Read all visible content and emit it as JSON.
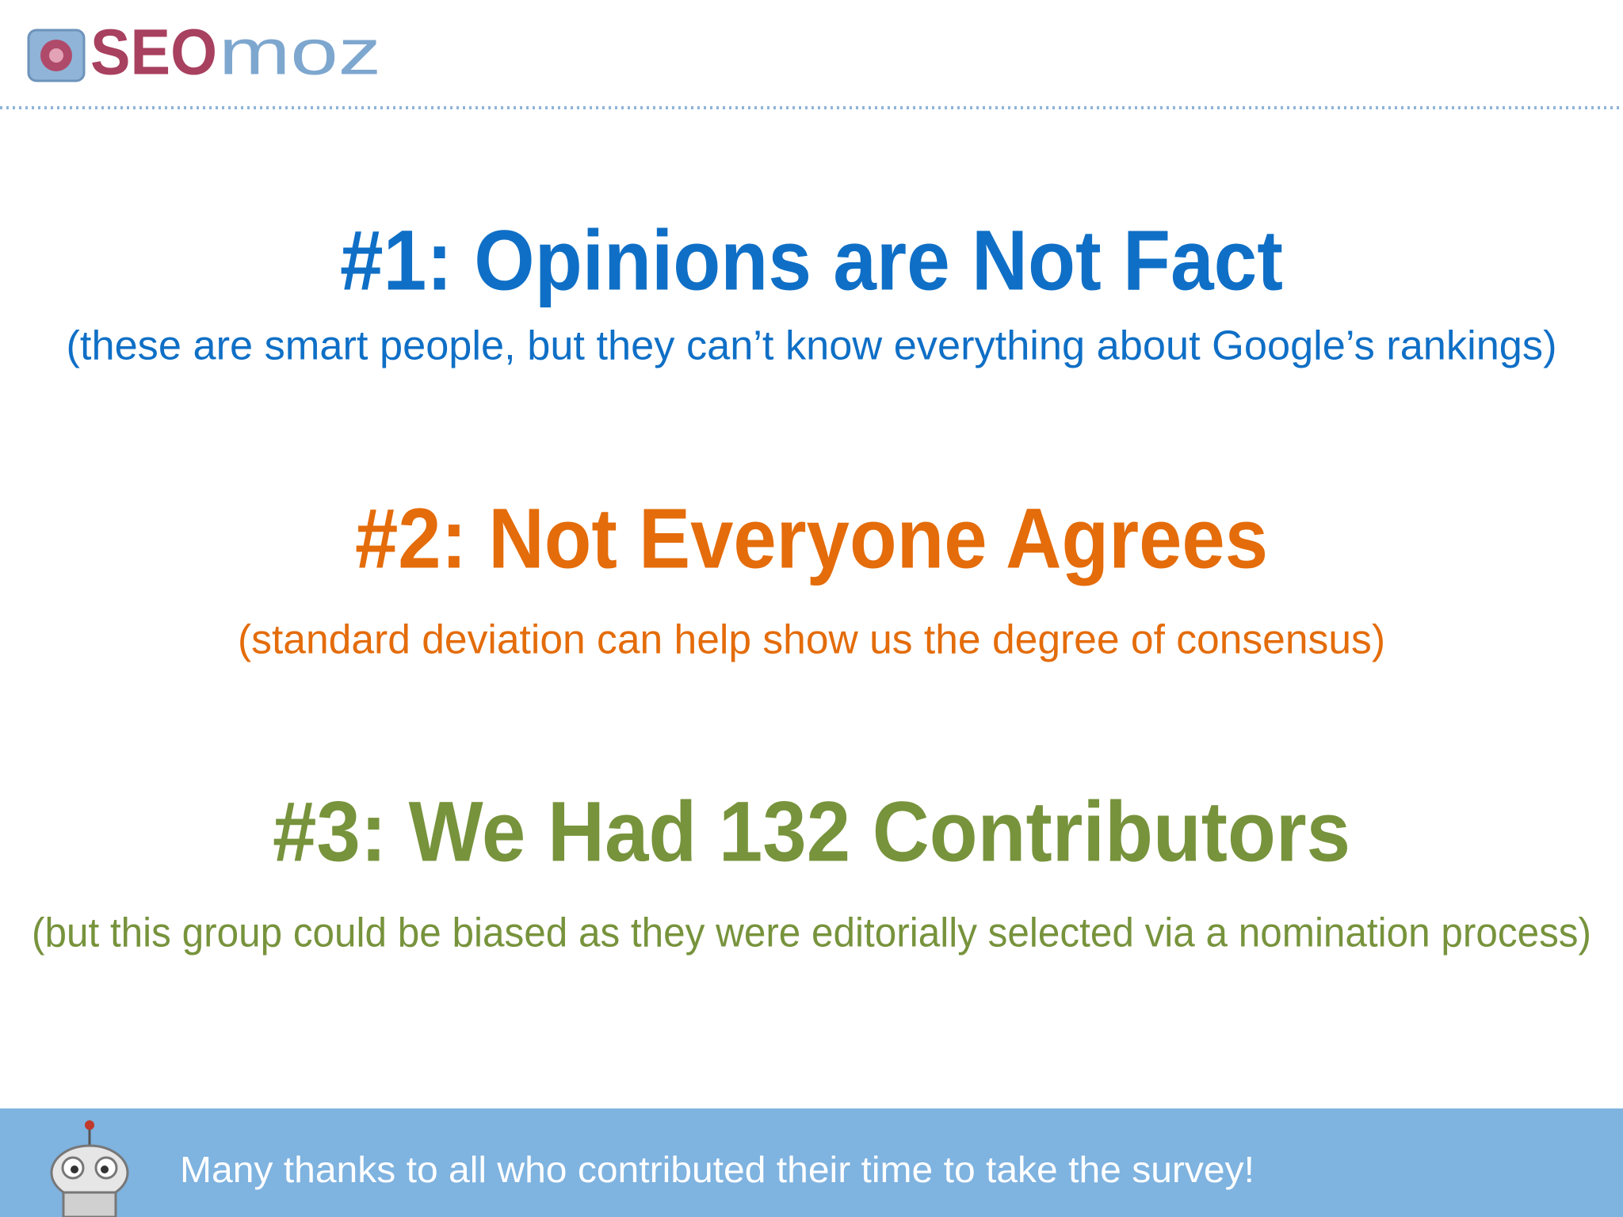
{
  "header": {
    "logo_bold": "SEO",
    "logo_light": "moz"
  },
  "points": [
    {
      "heading": "#1: Opinions are Not Fact",
      "note": "(these are smart people, but they can’t know everything about Google’s rankings)"
    },
    {
      "heading": "#2: Not Everyone Agrees",
      "note": "(standard deviation can help show us the degree of consensus)"
    },
    {
      "heading": "#3: We Had 132 Contributors",
      "note": "(but this group could be biased as they were editorially selected via a nomination process)"
    }
  ],
  "footer": {
    "text": "Many thanks to all who contributed their time to take the survey!"
  }
}
